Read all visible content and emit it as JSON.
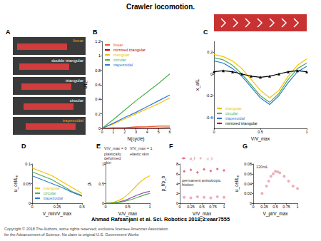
{
  "header": {
    "title": "Crawler locomotion."
  },
  "footer": {
    "citation": "Ahmad Rafsanjani et al. Sci. Robotics 2018;3:eaar7555",
    "copyright": [
      "Copyright © 2018 The Authors, some rights reserved; exclusive licensee American Association",
      "for the Advancement of Science. No claim to original U.S. Government Works"
    ]
  },
  "panel_a": {
    "panel": "A",
    "rows": [
      {
        "label": "linear",
        "color": "#f0a020"
      },
      {
        "label": "double triangular",
        "color": "#ffffff"
      },
      {
        "label": "triangular",
        "color": "#ffffff"
      },
      {
        "label": "circular",
        "color": "#ffffff"
      },
      {
        "label": "trapezoidal",
        "color": "#f0a020"
      }
    ]
  },
  "chart_data": [
    {
      "panel": "B",
      "type": "line",
      "x_label": "N(cycle)",
      "y_label": "u/L₀",
      "x": [
        0,
        1,
        2,
        3,
        4,
        5,
        6
      ],
      "xlim": [
        0,
        6
      ],
      "xticks": [
        0,
        1,
        2,
        3,
        4,
        5,
        6
      ],
      "ylim": [
        0,
        1.2
      ],
      "yticks": [
        0,
        0.2,
        0.4,
        0.6,
        0.8,
        1,
        1.2
      ],
      "legend": "upper left",
      "series": [
        {
          "name": "linear",
          "color": "#e8582a",
          "values": [
            0,
            0.01,
            0.01,
            0.02,
            0.02,
            0.03,
            0.03
          ]
        },
        {
          "name": "mirrored triangular",
          "color": "#c00000",
          "values": [
            0,
            0,
            0,
            0.005,
            0,
            0.005,
            0.01
          ]
        },
        {
          "name": "triangular",
          "color": "#f2c200",
          "values": [
            0,
            0.06,
            0.13,
            0.2,
            0.27,
            0.34,
            0.42
          ]
        },
        {
          "name": "circular",
          "color": "#4caf50",
          "values": [
            0,
            0.12,
            0.25,
            0.38,
            0.5,
            0.62,
            0.75
          ]
        },
        {
          "name": "trapezoidal",
          "color": "#2b7bd6",
          "values": [
            0,
            0.07,
            0.15,
            0.22,
            0.3,
            0.38,
            0.46
          ]
        }
      ]
    },
    {
      "panel": "C",
      "type": "line",
      "x_label": "V/V_max",
      "y_label": "x_a/L",
      "x": [
        0,
        0.1,
        0.2,
        0.3,
        0.4,
        0.5,
        0.6,
        0.7,
        0.8,
        0.9,
        1
      ],
      "xlim": [
        0,
        1
      ],
      "xticks": [
        0,
        0.5,
        1
      ],
      "ylim": [
        -0.5,
        0.3
      ],
      "yticks": [
        -0.4,
        -0.2,
        0,
        0.2
      ],
      "legend": "lower left",
      "series": [
        {
          "name": "triangular",
          "color": "#f2c200",
          "values": [
            0.18,
            0.16,
            0.12,
            0.05,
            -0.05,
            -0.15,
            -0.22,
            -0.15,
            -0.02,
            0.08,
            0.14
          ]
        },
        {
          "name": "circular",
          "color": "#4caf50",
          "values": [
            0.15,
            0.13,
            0.08,
            0,
            -0.1,
            -0.2,
            -0.26,
            -0.18,
            -0.05,
            0.05,
            0.1
          ]
        },
        {
          "name": "trapezoidal",
          "color": "#2b7bd6",
          "values": [
            0.12,
            0.1,
            0.05,
            -0.02,
            -0.12,
            -0.22,
            -0.28,
            -0.2,
            -0.08,
            0.02,
            0.07
          ]
        },
        {
          "name": "mirrored triangular",
          "color": "#000000",
          "marker": "triangle",
          "values": [
            0.02,
            0.03,
            0.02,
            0,
            -0.02,
            -0.03,
            -0.02,
            0,
            0.02,
            0.03,
            0.02
          ]
        }
      ]
    },
    {
      "panel": "D",
      "type": "line",
      "x_label": "V_min/V_max",
      "y_label": "u_cel/L₀",
      "x": [
        0,
        0.1,
        0.2,
        0.3,
        0.4,
        0.5
      ],
      "xlim": [
        0,
        0.5
      ],
      "xticks": [
        0,
        0.25,
        0.5
      ],
      "ylim": [
        0,
        0.1
      ],
      "yticks": [
        0,
        0.05,
        0.1
      ],
      "legend": "lower left",
      "series": [
        {
          "name": "triangular",
          "color": "#f2c200",
          "values": [
            0.09,
            0.08,
            0.07,
            0.055,
            0.04,
            0.025
          ]
        },
        {
          "name": "circular",
          "color": "#4caf50",
          "values": [
            0.08,
            0.07,
            0.06,
            0.045,
            0.03,
            0.02
          ]
        },
        {
          "name": "trapezoidal",
          "color": "#2b7bd6",
          "values": [
            0.07,
            0.06,
            0.05,
            0.04,
            0.028,
            0.018
          ]
        }
      ]
    },
    {
      "panel": "E",
      "type": "line",
      "x_label": "V/V_max",
      "y_label": "ρₜ",
      "x": [
        0,
        0.1,
        0.2,
        0.3,
        0.4,
        0.5,
        0.6,
        0.7,
        0.8,
        0.9,
        1
      ],
      "xlim": [
        0,
        1
      ],
      "xticks": [
        0,
        0.5,
        1
      ],
      "ylim": [
        0,
        1
      ],
      "yticks": [
        0,
        0.5,
        1
      ],
      "annotations": [
        "V/V_max = 0",
        "V/V_max = 1",
        "plastically deformed skin",
        "elastic skin"
      ],
      "series": [
        {
          "color": "#f2c200",
          "values": [
            0,
            0.01,
            0.03,
            0.07,
            0.13,
            0.22,
            0.33,
            0.45,
            0.56,
            0.64,
            0.7
          ]
        },
        {
          "color": "#8e44ad",
          "values": [
            0,
            0.005,
            0.01,
            0.03,
            0.06,
            0.1,
            0.15,
            0.2,
            0.24,
            0.28,
            0.3
          ]
        },
        {
          "color": "#4caf50",
          "values": [
            0,
            0.005,
            0.01,
            0.02,
            0.04,
            0.07,
            0.1,
            0.14,
            0.18,
            0.22,
            0.25
          ]
        }
      ]
    },
    {
      "panel": "F",
      "type": "scatter",
      "x_label": "V/V_max",
      "y_label": "p_f/p_b",
      "x": [
        0.1,
        0.25,
        0.4,
        0.55,
        0.7,
        0.85,
        1
      ],
      "xlim": [
        0,
        1
      ],
      "xticks": [
        0,
        0.25,
        0.5,
        0.75,
        1
      ],
      "ylim": [
        0,
        8
      ],
      "yticks": [
        0,
        2,
        4,
        6,
        8
      ],
      "legend": "top",
      "annotations": [
        "permanent anisotropic friction"
      ],
      "series": [
        {
          "name": "p_f",
          "color": "#d94f6a",
          "marker": "diamond",
          "values": [
            6.5,
            6.8,
            6.3,
            6.9,
            6.6,
            7,
            6.7
          ]
        },
        {
          "name": "p_b",
          "color": "#e89aa8",
          "marker": "circle",
          "values": [
            1.2,
            1.1,
            1.3,
            1.2,
            1.1,
            1.3,
            1.2
          ]
        }
      ]
    },
    {
      "panel": "G",
      "type": "scatter",
      "x_label": "V_pl/V_max",
      "y_label": "u_cel/L₀",
      "x": [
        0.2,
        0.3,
        0.35,
        0.4,
        0.45,
        0.5,
        0.55,
        0.6,
        0.7,
        0.8,
        0.9,
        1
      ],
      "xlim": [
        0,
        1
      ],
      "xticks": [
        0,
        0.25,
        0.5,
        0.75,
        1
      ],
      "ylim": [
        0,
        0.08
      ],
      "yticks": [
        0,
        0.02,
        0.04,
        0.06,
        0.08
      ],
      "annotations": [
        "120mL"
      ],
      "series": [
        {
          "color": "#e89aa8",
          "marker": "circle",
          "values": [
            0.02,
            0.035,
            0.045,
            0.055,
            0.06,
            0.065,
            0.064,
            0.062,
            0.055,
            0.045,
            0.035,
            0.03
          ]
        }
      ]
    }
  ]
}
